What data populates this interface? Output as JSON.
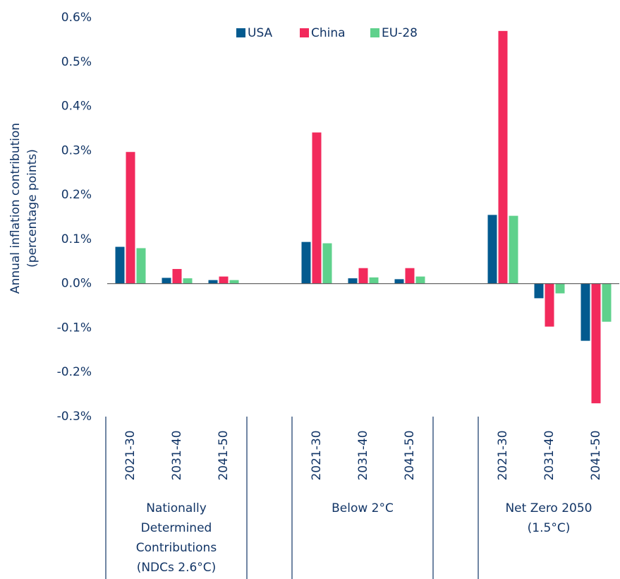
{
  "chart_data": {
    "type": "bar",
    "ylabel": [
      "Annual inflation contribution",
      "(percentage points)"
    ],
    "categories": [
      "2021-30",
      "2031-40",
      "2041-50",
      null,
      "2021-30",
      "2031-40",
      "2041-50",
      null,
      "2021-30",
      "2031-40",
      "2041-50"
    ],
    "groups": [
      {
        "label": [
          "Nationally",
          "Determined",
          "Contributions",
          "(NDCs 2.6°C)"
        ]
      },
      {
        "label": [
          "Below 2°C"
        ]
      },
      {
        "label": [
          "Net Zero 2050",
          "(1.5°C)"
        ]
      }
    ],
    "series": [
      {
        "name": "USA",
        "color": "#035a8f",
        "values": [
          0.083,
          0.013,
          0.008,
          null,
          0.094,
          0.012,
          0.01,
          null,
          0.155,
          -0.033,
          -0.129
        ]
      },
      {
        "name": "China",
        "color": "#f22a5c",
        "values": [
          0.297,
          0.033,
          0.016,
          null,
          0.341,
          0.035,
          0.035,
          null,
          0.57,
          -0.097,
          -0.27
        ]
      },
      {
        "name": "EU-28",
        "color": "#5fd18c",
        "values": [
          0.08,
          0.012,
          0.008,
          null,
          0.091,
          0.014,
          0.016,
          null,
          0.153,
          -0.022,
          -0.086
        ]
      }
    ],
    "ylim": [
      -0.3,
      0.6
    ],
    "yticks": [
      {
        "value": 0.6,
        "label": "0.6%"
      },
      {
        "value": 0.5,
        "label": "0.5%"
      },
      {
        "value": 0.4,
        "label": "0.4%"
      },
      {
        "value": 0.3,
        "label": "0.3%"
      },
      {
        "value": 0.2,
        "label": "0.2%"
      },
      {
        "value": 0.1,
        "label": "0.1%"
      },
      {
        "value": 0.0,
        "label": "0.0%"
      },
      {
        "value": -0.1,
        "label": "-0.1%"
      },
      {
        "value": -0.2,
        "label": "-0.2%"
      },
      {
        "value": -0.3,
        "label": "-0.3%"
      }
    ],
    "legend": "top"
  }
}
